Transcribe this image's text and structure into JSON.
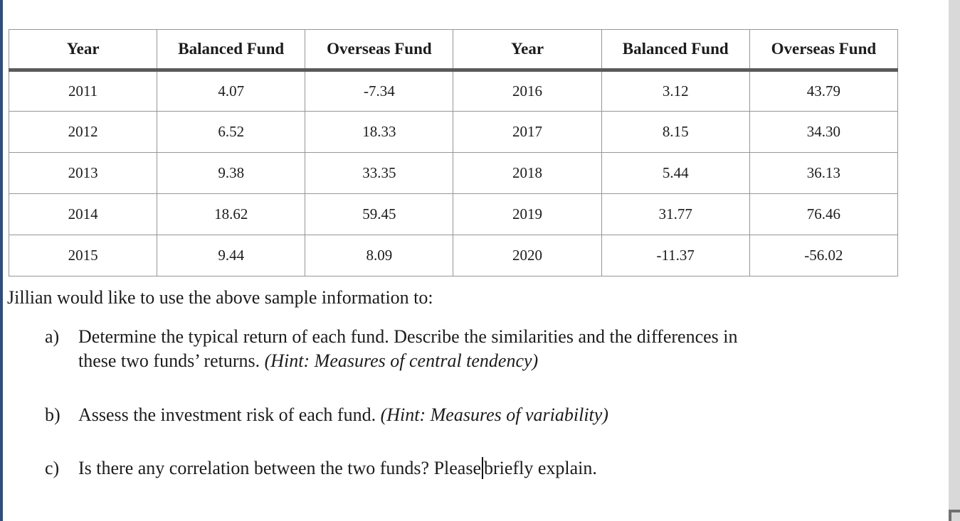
{
  "colors": {
    "accent_bar": "#2f4d7e",
    "side_strip": "#d9d9d9",
    "corner_mark": "#707070",
    "table_border": "#969696",
    "header_separator": "#5a5a5a",
    "text": "#1c1c1c"
  },
  "table": {
    "headers": [
      "Year",
      "Balanced Fund",
      "Overseas Fund",
      "Year",
      "Balanced Fund",
      "Overseas Fund"
    ],
    "rows": [
      [
        "2011",
        "4.07",
        "-7.34",
        "2016",
        "3.12",
        "43.79"
      ],
      [
        "2012",
        "6.52",
        "18.33",
        "2017",
        "8.15",
        "34.30"
      ],
      [
        "2013",
        "9.38",
        "33.35",
        "2018",
        "5.44",
        "36.13"
      ],
      [
        "2014",
        "18.62",
        "59.45",
        "2019",
        "31.77",
        "76.46"
      ],
      [
        "2015",
        "9.44",
        "8.09",
        "2020",
        "-11.37",
        "-56.02"
      ]
    ]
  },
  "body": {
    "intro": "Jillian would like to use the above sample information to:",
    "items": [
      {
        "marker": "a)",
        "line1": "Determine the typical return of each fund. Describe the similarities and the differences in",
        "line2": "these two funds’ returns. ",
        "hint": "(Hint: Measures of central tendency)"
      },
      {
        "marker": "b)",
        "text": "Assess the investment risk of each fund. ",
        "hint": "(Hint: Measures of variability)"
      },
      {
        "marker": "c)",
        "before_caret": "Is there any correlation between the two funds? Please",
        "after_caret": "briefly explain."
      }
    ]
  }
}
